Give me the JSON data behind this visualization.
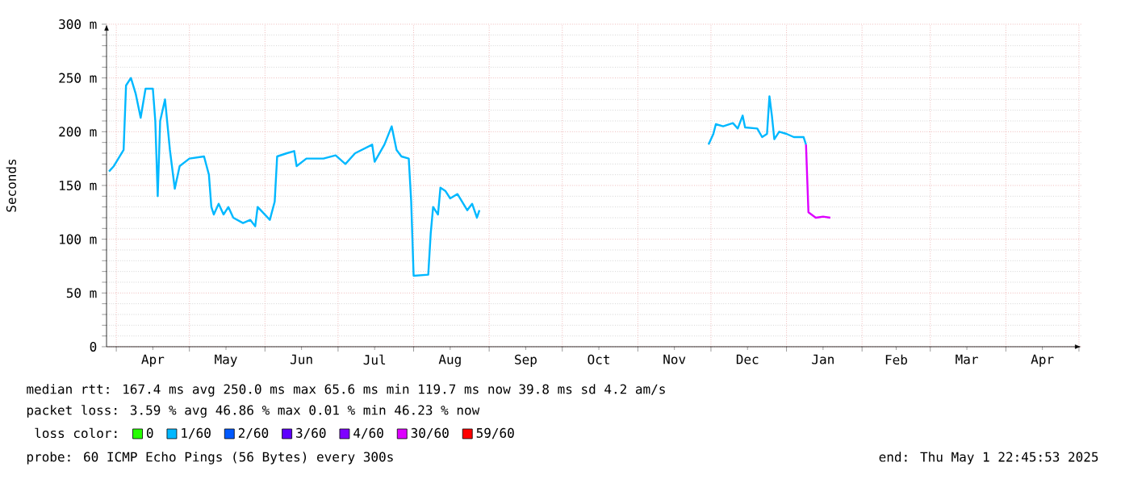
{
  "chart_data": {
    "type": "line",
    "ylabel": "Seconds",
    "legend_title": "loss color:",
    "legend": "bottom",
    "grid": true,
    "xlim": [
      "2024-03-28",
      "2025-05-02"
    ],
    "ylim": [
      0,
      300
    ],
    "yticks": [
      0,
      {
        "value": 50,
        "label": "50 m"
      },
      {
        "value": 100,
        "label": "100 m"
      },
      {
        "value": 150,
        "label": "150 m"
      },
      {
        "value": 200,
        "label": "200 m"
      },
      {
        "value": 250,
        "label": "250 m"
      },
      {
        "value": 300,
        "label": "300 m"
      }
    ],
    "xticks": [
      {
        "value": "2024-04-01",
        "label": null
      },
      {
        "value": "2024-04-16",
        "label": "Apr"
      },
      {
        "value": "2024-05-01",
        "label": null
      },
      {
        "value": "2024-05-16",
        "label": "May"
      },
      {
        "value": "2024-06-01",
        "label": null
      },
      {
        "value": "2024-06-16",
        "label": "Jun"
      },
      {
        "value": "2024-07-01",
        "label": null
      },
      {
        "value": "2024-07-16",
        "label": "Jul"
      },
      {
        "value": "2024-08-01",
        "label": null
      },
      {
        "value": "2024-08-16",
        "label": "Aug"
      },
      {
        "value": "2024-09-01",
        "label": null
      },
      {
        "value": "2024-09-16",
        "label": "Sep"
      },
      {
        "value": "2024-10-01",
        "label": null
      },
      {
        "value": "2024-10-16",
        "label": "Oct"
      },
      {
        "value": "2024-11-01",
        "label": null
      },
      {
        "value": "2024-11-16",
        "label": "Nov"
      },
      {
        "value": "2024-12-01",
        "label": null
      },
      {
        "value": "2024-12-16",
        "label": "Dec"
      },
      {
        "value": "2025-01-01",
        "label": null
      },
      {
        "value": "2025-01-16",
        "label": "Jan"
      },
      {
        "value": "2025-02-01",
        "label": null
      },
      {
        "value": "2025-02-15",
        "label": "Feb"
      },
      {
        "value": "2025-03-01",
        "label": null
      },
      {
        "value": "2025-03-16",
        "label": "Mar"
      },
      {
        "value": "2025-04-01",
        "label": null
      },
      {
        "value": "2025-04-16",
        "label": "Apr"
      },
      {
        "value": "2025-05-01",
        "label": null
      }
    ],
    "annotations": [
      "median rtt:  167.4 ms avg  250.0 ms max  65.6 ms min  119.7 ms now  39.8 ms sd  4.2   am/s",
      "packet loss: 3.59 % avg  46.86 % max  0.01 % min  46.23 % now",
      "probe:       60 ICMP Echo Pings (56 Bytes) every 300s",
      "end: Thu May  1 22:45:53 2025"
    ],
    "series": [
      {
        "name": "0",
        "color": "#26ff00"
      },
      {
        "name": "1/60",
        "color": "#00b8ff",
        "x": [
          "2024-03-29",
          "2024-03-31",
          "2024-04-04",
          "2024-04-05",
          "2024-04-07",
          "2024-04-09",
          "2024-04-11",
          "2024-04-13",
          "2024-04-16",
          "2024-04-17",
          "2024-04-18",
          "2024-04-19",
          "2024-04-21",
          "2024-04-23",
          "2024-04-25",
          "2024-04-27",
          "2024-05-01",
          "2024-05-07",
          "2024-05-09",
          "2024-05-10",
          "2024-05-11",
          "2024-05-13",
          "2024-05-15",
          "2024-05-17",
          "2024-05-19",
          "2024-05-23",
          "2024-05-26",
          "2024-05-28",
          "2024-05-29",
          "2024-06-03",
          "2024-06-05",
          "2024-06-06",
          "2024-06-10",
          "2024-06-13",
          "2024-06-14",
          "2024-06-18",
          "2024-06-25",
          "2024-06-30",
          "2024-07-04",
          "2024-07-08",
          "2024-07-15",
          "2024-07-16",
          "2024-07-20",
          "2024-07-23",
          "2024-07-25",
          "2024-07-27",
          "2024-07-30",
          "2024-07-31",
          "2024-08-01",
          "2024-08-07",
          "2024-08-08",
          "2024-08-09",
          "2024-08-11",
          "2024-08-12",
          "2024-08-14",
          "2024-08-16",
          "2024-08-19",
          "2024-08-23",
          "2024-08-25",
          "2024-08-27",
          "2024-08-28",
          "2024-10-15",
          "2024-11-30",
          "2024-12-02",
          "2024-12-03",
          "2024-12-06",
          "2024-12-10",
          "2024-12-12",
          "2024-12-14",
          "2024-12-15",
          "2024-12-20",
          "2024-12-22",
          "2024-12-24",
          "2024-12-25",
          "2024-12-26",
          "2024-12-27",
          "2024-12-29",
          "2025-01-01",
          "2025-01-04",
          "2025-01-08",
          "2025-01-09"
        ],
        "values": [
          163,
          168,
          183,
          243,
          250,
          235,
          213,
          240,
          240,
          210,
          140,
          210,
          230,
          183,
          147,
          168,
          175,
          177,
          160,
          130,
          123,
          133,
          123,
          130,
          120,
          115,
          118,
          112,
          130,
          118,
          135,
          177,
          180,
          182,
          168,
          175,
          175,
          178,
          170,
          180,
          188,
          172,
          188,
          205,
          183,
          177,
          175,
          135,
          66,
          67,
          105,
          130,
          123,
          148,
          145,
          138,
          142,
          127,
          133,
          120,
          127,
          null,
          188,
          198,
          207,
          205,
          208,
          203,
          215,
          204,
          203,
          195,
          198,
          233,
          215,
          193,
          200,
          198,
          195,
          195,
          188
        ]
      },
      {
        "name": "2/60",
        "color": "#0059ff"
      },
      {
        "name": "3/60",
        "color": "#5e00ff"
      },
      {
        "name": "4/60",
        "color": "#7e00ff"
      },
      {
        "name": "30/60",
        "color": "#dd00ff",
        "x": [
          "2025-01-09",
          "2025-01-10",
          "2025-01-13",
          "2025-01-16",
          "2025-01-19"
        ],
        "values": [
          188,
          125,
          120,
          121,
          120
        ]
      },
      {
        "name": "59/60",
        "color": "#ff0000"
      }
    ]
  }
}
